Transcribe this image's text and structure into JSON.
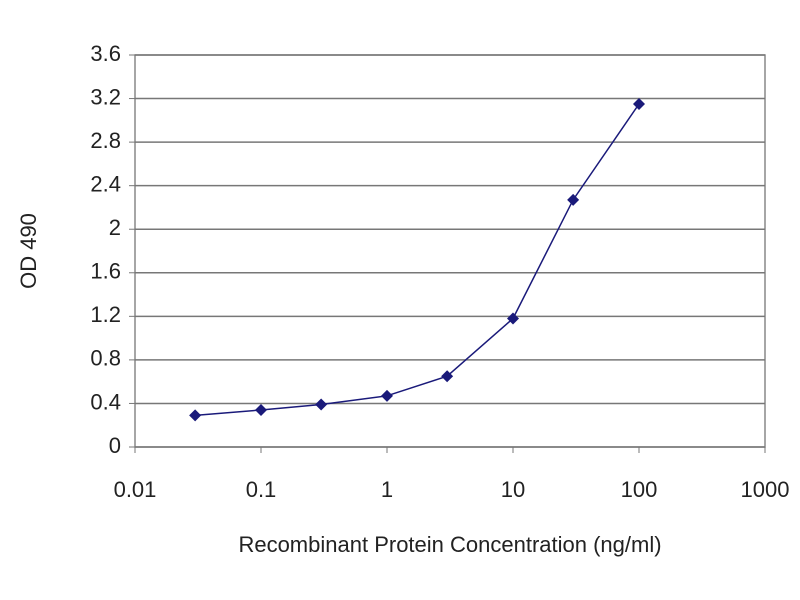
{
  "chart_data": {
    "type": "line",
    "x_label": "Recombinant Protein Concentration (ng/ml)",
    "y_label": "OD 490",
    "x": [
      0.03,
      0.1,
      0.3,
      1,
      3,
      10,
      30,
      100
    ],
    "values": [
      0.29,
      0.34,
      0.39,
      0.47,
      0.65,
      1.18,
      2.27,
      3.15
    ],
    "color": "#1a1a7a",
    "xscale": "log",
    "xlim": [
      0.01,
      1000
    ],
    "xticks": [
      0.01,
      0.1,
      1,
      10,
      100,
      1000
    ],
    "ylim": [
      0,
      3.6
    ],
    "yticks": [
      0,
      0.4,
      0.8,
      1.2,
      1.6,
      2,
      2.4,
      2.8,
      3.2,
      3.6
    ],
    "grid": true
  }
}
